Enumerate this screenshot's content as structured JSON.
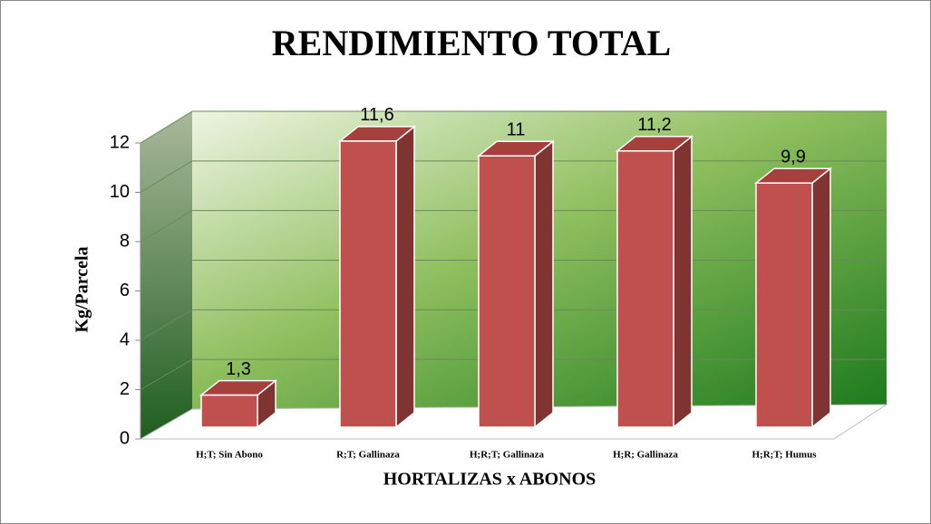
{
  "chart_data": {
    "type": "bar3d",
    "title": "RENDIMIENTO TOTAL",
    "x_label": "HORTALIZAS x ABONOS",
    "y_label": "Kg/Parcela",
    "categories": [
      "H;T; Sin Abono",
      "R;T; Gallinaza",
      "H;R;T; Gallinaza",
      "H;R; Gallinaza",
      "H;R;T; Humus"
    ],
    "values": [
      1.3,
      11.6,
      11,
      11.2,
      9.9
    ],
    "value_labels": [
      "1,3",
      "11,6",
      "11",
      "11,2",
      "9,9"
    ],
    "color": "#c0504d",
    "ylim": [
      0,
      12
    ],
    "yticks": [
      0,
      2,
      4,
      6,
      8,
      10,
      12
    ],
    "grid": true
  }
}
